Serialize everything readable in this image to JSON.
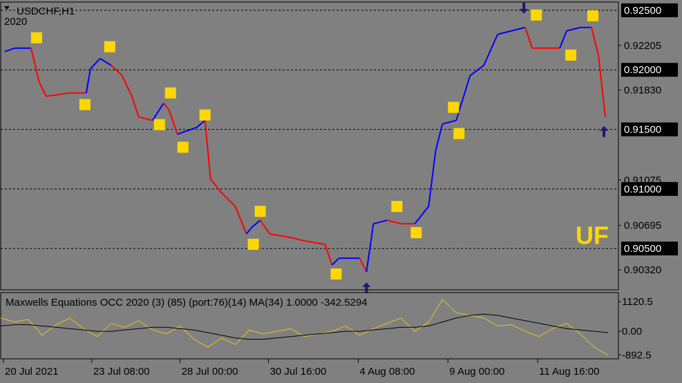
{
  "chart_data": [
    {
      "type": "line",
      "title": "USDCHF,H1",
      "subtitle": "2020",
      "annotation": "UF",
      "x": [
        3,
        10,
        22,
        28,
        33,
        50,
        62,
        65,
        72,
        80,
        88,
        95,
        100,
        110,
        118,
        122,
        128,
        135,
        142,
        148,
        152,
        160,
        170,
        178,
        182,
        188,
        195,
        210,
        220,
        235,
        240,
        245,
        260,
        265,
        270,
        280,
        290,
        300,
        310,
        315,
        320,
        330,
        340,
        350,
        360,
        370,
        380,
        385,
        395,
        405,
        410,
        420,
        428,
        433,
        438
      ],
      "values": [
        0.92153,
        0.92182,
        0.92182,
        0.91893,
        0.91778,
        0.91806,
        0.91806,
        0.92009,
        0.92095,
        0.92038,
        0.91951,
        0.91778,
        0.91604,
        0.91575,
        0.9172,
        0.91662,
        0.9146,
        0.91488,
        0.91517,
        0.91575,
        0.91084,
        0.90968,
        0.90853,
        0.90622,
        0.90679,
        0.90737,
        0.90622,
        0.90593,
        0.90564,
        0.90535,
        0.90361,
        0.90419,
        0.90419,
        0.90304,
        0.90708,
        0.90737,
        0.90708,
        0.90708,
        0.90853,
        0.91315,
        0.91546,
        0.91575,
        0.91951,
        0.92038,
        0.92298,
        0.92327,
        0.92356,
        0.92182,
        0.92182,
        0.92182,
        0.92327,
        0.92356,
        0.92356,
        0.92124,
        0.91604
      ],
      "point_colors": [
        "#0000ff",
        "#0000ff",
        "#ff0000",
        "#ff0000",
        "#ff0000",
        "#ff0000",
        "#0000ff",
        "#0000ff",
        "#0000ff",
        "#ff0000",
        "#ff0000",
        "#ff0000",
        "#ff0000",
        "#0000ff",
        "#ff0000",
        "#ff0000",
        "#0000ff",
        "#0000ff",
        "#0000ff",
        "#ff0000",
        "#ff0000",
        "#ff0000",
        "#ff0000",
        "#0000ff",
        "#0000ff",
        "#ff0000",
        "#ff0000",
        "#ff0000",
        "#ff0000",
        "#ff0000",
        "#0000ff",
        "#0000ff",
        "#ff0000",
        "#0000ff",
        "#0000ff",
        "#ff0000",
        "#ff0000",
        "#0000ff",
        "#0000ff",
        "#0000ff",
        "#0000ff",
        "#0000ff",
        "#0000ff",
        "#0000ff",
        "#0000ff",
        "#0000ff",
        "#ff0000",
        "#ff0000",
        "#ff0000",
        "#0000ff",
        "#0000ff",
        "#0000ff",
        "#ff0000",
        "#ff0000",
        "#ff0000"
      ],
      "markers": {
        "color": "#ffd700",
        "x": [
          26,
          61,
          79,
          123,
          115,
          132,
          148,
          188,
          183,
          243,
          287,
          301,
          328,
          332,
          388,
          413,
          429
        ],
        "values": [
          0.92269,
          0.91708,
          0.92194,
          0.91806,
          0.9154,
          0.9135,
          0.91621,
          0.90812,
          0.90535,
          0.90286,
          0.90853,
          0.90633,
          0.91685,
          0.91465,
          0.9246,
          0.92124,
          0.92454
        ]
      },
      "arrows": {
        "color": "#1c1c6b",
        "x": [
          379,
          265,
          437
        ],
        "values": [
          0.92471,
          0.90217,
          0.91529
        ],
        "direction": [
          "down",
          "up",
          "up"
        ]
      },
      "xlim": [
        0,
        447.5
      ],
      "ylim": [
        0.90153,
        0.92569
      ],
      "yticks": [
        {
          "value": 0.925,
          "label": "0.92500"
        },
        {
          "value": 0.92,
          "label": "0.92000"
        },
        {
          "value": 0.915,
          "label": "0.91500"
        },
        {
          "value": 0.91,
          "label": "0.91000"
        },
        {
          "value": 0.905,
          "label": "0.90500"
        }
      ],
      "yticks_minor": [
        {
          "value": 0.92205,
          "label": "0.92205"
        },
        {
          "value": 0.9183,
          "label": "0.91830"
        },
        {
          "value": 0.91075,
          "label": "0.91075"
        },
        {
          "value": 0.90695,
          "label": "0.90695"
        },
        {
          "value": 0.9032,
          "label": "0.90320"
        }
      ],
      "xticks": [
        {
          "value": 2,
          "label": "20 Jul 2021"
        },
        {
          "value": 66,
          "label": "23 Jul 08:00"
        },
        {
          "value": 130,
          "label": "28 Jul 00:00"
        },
        {
          "value": 194,
          "label": "30 Jul 16:00"
        },
        {
          "value": 259,
          "label": "4 Aug 08:00"
        },
        {
          "value": 324,
          "label": "9 Aug 00:00"
        },
        {
          "value": 389,
          "label": "11 Aug 16:00"
        }
      ],
      "grid": true
    },
    {
      "type": "line",
      "title": "Maxwells Equations OCC 2020 (3) (85) (port:76)(14) MA(34) 1.0000 -342.5294",
      "x": [
        0,
        10,
        20,
        30,
        40,
        50,
        60,
        70,
        80,
        90,
        100,
        110,
        120,
        130,
        140,
        150,
        160,
        170,
        180,
        190,
        200,
        210,
        220,
        230,
        240,
        250,
        260,
        270,
        280,
        290,
        300,
        310,
        320,
        330,
        340,
        350,
        360,
        370,
        380,
        390,
        400,
        410,
        420,
        430,
        440
      ],
      "series": [
        {
          "color": "#e6c619",
          "values": [
            500,
            350,
            450,
            -150,
            250,
            500,
            100,
            -200,
            300,
            150,
            400,
            50,
            -100,
            200,
            -300,
            -600,
            -250,
            -500,
            50,
            -100,
            0,
            100,
            -200,
            -100,
            0,
            200,
            -150,
            100,
            300,
            500,
            0,
            350,
            1200,
            700,
            600,
            500,
            200,
            250,
            0,
            -200,
            100,
            300,
            -100,
            -600,
            -900
          ]
        },
        {
          "color": "#000000",
          "values": [
            200,
            250,
            250,
            200,
            150,
            100,
            50,
            0,
            0,
            50,
            100,
            150,
            150,
            100,
            50,
            -50,
            -150,
            -250,
            -300,
            -300,
            -250,
            -200,
            -150,
            -100,
            -50,
            0,
            0,
            50,
            100,
            150,
            150,
            200,
            350,
            500,
            600,
            650,
            600,
            500,
            400,
            300,
            200,
            100,
            50,
            0,
            -50
          ]
        }
      ],
      "xlim": [
        0,
        447.5
      ],
      "ylim": [
        -1040,
        1460
      ],
      "yticks": [
        1120.5,
        {
          "value": 0,
          "label": "0.00"
        },
        -892.5
      ]
    }
  ]
}
